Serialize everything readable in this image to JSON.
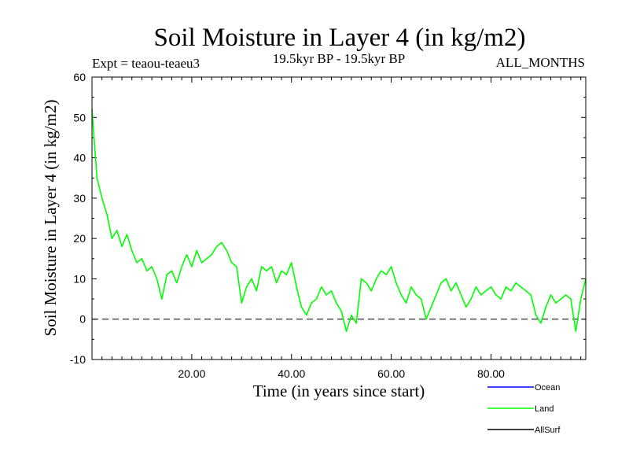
{
  "chart_data": {
    "type": "line",
    "title": "Soil Moisture in Layer 4 (in kg/m2)",
    "subtitle_left": "Expt = teaou-teaeu3",
    "subtitle_center": "19.5kyr BP - 19.5kyr BP",
    "subtitle_right": "ALL_MONTHS",
    "xlabel": "Time (in years since start)",
    "ylabel": "Soil Moisture in Layer 4 (in kg/m2)",
    "xlim": [
      0,
      99
    ],
    "ylim": [
      -10,
      60
    ],
    "x_ticks": [
      20,
      40,
      60,
      80
    ],
    "x_tick_labels": [
      "20.00",
      "40.00",
      "60.00",
      "80.00"
    ],
    "y_ticks": [
      -10,
      0,
      10,
      20,
      30,
      40,
      50,
      60
    ],
    "y_tick_labels": [
      "-10",
      "0",
      "10",
      "20",
      "30",
      "40",
      "50",
      "60"
    ],
    "zero_line": 0,
    "legend": [
      {
        "name": "Ocean",
        "color": "#0000ff"
      },
      {
        "name": "Land",
        "color": "#00ff00"
      },
      {
        "name": "AllSurf",
        "color": "#000000"
      }
    ],
    "series": [
      {
        "name": "Land",
        "color": "#00ff00",
        "x": [
          0,
          1,
          2,
          3,
          4,
          5,
          6,
          7,
          8,
          9,
          10,
          11,
          12,
          13,
          14,
          15,
          16,
          17,
          18,
          19,
          20,
          21,
          22,
          23,
          24,
          25,
          26,
          27,
          28,
          29,
          30,
          31,
          32,
          33,
          34,
          35,
          36,
          37,
          38,
          39,
          40,
          41,
          42,
          43,
          44,
          45,
          46,
          47,
          48,
          49,
          50,
          51,
          52,
          53,
          54,
          55,
          56,
          57,
          58,
          59,
          60,
          61,
          62,
          63,
          64,
          65,
          66,
          67,
          68,
          69,
          70,
          71,
          72,
          73,
          74,
          75,
          76,
          77,
          78,
          79,
          80,
          81,
          82,
          83,
          84,
          85,
          86,
          87,
          88,
          89,
          90,
          91,
          92,
          93,
          94,
          95,
          96,
          97,
          98,
          99
        ],
        "values": [
          52,
          35,
          30,
          26,
          20,
          22,
          18,
          21,
          17,
          14,
          15,
          12,
          13,
          10,
          5,
          11,
          12,
          9,
          13,
          16,
          13,
          17,
          14,
          15,
          16,
          18,
          19,
          17,
          14,
          13,
          4,
          8,
          10,
          7,
          13,
          12,
          13,
          9,
          12,
          11,
          14,
          8,
          3,
          1,
          4,
          5,
          8,
          6,
          7,
          4,
          2,
          -3,
          1,
          -1,
          10,
          9,
          7,
          10,
          12,
          11,
          13,
          9,
          6,
          4,
          8,
          6,
          5,
          0,
          3,
          6,
          9,
          10,
          7,
          9,
          6,
          3,
          5,
          8,
          6,
          7,
          8,
          6,
          5,
          8,
          7,
          9,
          8,
          7,
          6,
          1,
          -1,
          3,
          6,
          4,
          5,
          6,
          5,
          -3,
          5,
          10
        ]
      }
    ]
  }
}
